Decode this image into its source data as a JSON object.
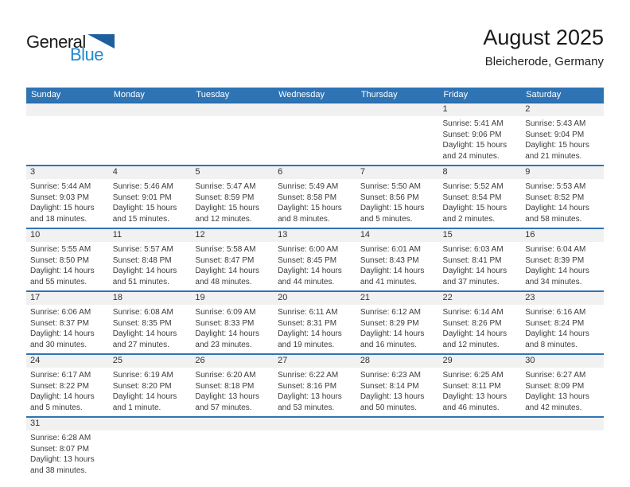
{
  "logo": {
    "part1": "General",
    "part2": "Blue"
  },
  "header": {
    "title": "August 2025",
    "subtitle": "Bleicherode, Germany"
  },
  "colors": {
    "header_bar": "#2e74b5",
    "row_separator": "#2e74b5",
    "day_strip": "#f1f1f1",
    "logo_blue": "#2289cb",
    "logo_triangle": "#1e5f9e",
    "text": "#3c3c3c"
  },
  "calendar": {
    "day_headers": [
      "Sunday",
      "Monday",
      "Tuesday",
      "Wednesday",
      "Thursday",
      "Friday",
      "Saturday"
    ],
    "weeks": [
      [
        null,
        null,
        null,
        null,
        null,
        {
          "day": "1",
          "lines": [
            "Sunrise: 5:41 AM",
            "Sunset: 9:06 PM",
            "Daylight: 15 hours",
            "and 24 minutes."
          ]
        },
        {
          "day": "2",
          "lines": [
            "Sunrise: 5:43 AM",
            "Sunset: 9:04 PM",
            "Daylight: 15 hours",
            "and 21 minutes."
          ]
        }
      ],
      [
        {
          "day": "3",
          "lines": [
            "Sunrise: 5:44 AM",
            "Sunset: 9:03 PM",
            "Daylight: 15 hours",
            "and 18 minutes."
          ]
        },
        {
          "day": "4",
          "lines": [
            "Sunrise: 5:46 AM",
            "Sunset: 9:01 PM",
            "Daylight: 15 hours",
            "and 15 minutes."
          ]
        },
        {
          "day": "5",
          "lines": [
            "Sunrise: 5:47 AM",
            "Sunset: 8:59 PM",
            "Daylight: 15 hours",
            "and 12 minutes."
          ]
        },
        {
          "day": "6",
          "lines": [
            "Sunrise: 5:49 AM",
            "Sunset: 8:58 PM",
            "Daylight: 15 hours",
            "and 8 minutes."
          ]
        },
        {
          "day": "7",
          "lines": [
            "Sunrise: 5:50 AM",
            "Sunset: 8:56 PM",
            "Daylight: 15 hours",
            "and 5 minutes."
          ]
        },
        {
          "day": "8",
          "lines": [
            "Sunrise: 5:52 AM",
            "Sunset: 8:54 PM",
            "Daylight: 15 hours",
            "and 2 minutes."
          ]
        },
        {
          "day": "9",
          "lines": [
            "Sunrise: 5:53 AM",
            "Sunset: 8:52 PM",
            "Daylight: 14 hours",
            "and 58 minutes."
          ]
        }
      ],
      [
        {
          "day": "10",
          "lines": [
            "Sunrise: 5:55 AM",
            "Sunset: 8:50 PM",
            "Daylight: 14 hours",
            "and 55 minutes."
          ]
        },
        {
          "day": "11",
          "lines": [
            "Sunrise: 5:57 AM",
            "Sunset: 8:48 PM",
            "Daylight: 14 hours",
            "and 51 minutes."
          ]
        },
        {
          "day": "12",
          "lines": [
            "Sunrise: 5:58 AM",
            "Sunset: 8:47 PM",
            "Daylight: 14 hours",
            "and 48 minutes."
          ]
        },
        {
          "day": "13",
          "lines": [
            "Sunrise: 6:00 AM",
            "Sunset: 8:45 PM",
            "Daylight: 14 hours",
            "and 44 minutes."
          ]
        },
        {
          "day": "14",
          "lines": [
            "Sunrise: 6:01 AM",
            "Sunset: 8:43 PM",
            "Daylight: 14 hours",
            "and 41 minutes."
          ]
        },
        {
          "day": "15",
          "lines": [
            "Sunrise: 6:03 AM",
            "Sunset: 8:41 PM",
            "Daylight: 14 hours",
            "and 37 minutes."
          ]
        },
        {
          "day": "16",
          "lines": [
            "Sunrise: 6:04 AM",
            "Sunset: 8:39 PM",
            "Daylight: 14 hours",
            "and 34 minutes."
          ]
        }
      ],
      [
        {
          "day": "17",
          "lines": [
            "Sunrise: 6:06 AM",
            "Sunset: 8:37 PM",
            "Daylight: 14 hours",
            "and 30 minutes."
          ]
        },
        {
          "day": "18",
          "lines": [
            "Sunrise: 6:08 AM",
            "Sunset: 8:35 PM",
            "Daylight: 14 hours",
            "and 27 minutes."
          ]
        },
        {
          "day": "19",
          "lines": [
            "Sunrise: 6:09 AM",
            "Sunset: 8:33 PM",
            "Daylight: 14 hours",
            "and 23 minutes."
          ]
        },
        {
          "day": "20",
          "lines": [
            "Sunrise: 6:11 AM",
            "Sunset: 8:31 PM",
            "Daylight: 14 hours",
            "and 19 minutes."
          ]
        },
        {
          "day": "21",
          "lines": [
            "Sunrise: 6:12 AM",
            "Sunset: 8:29 PM",
            "Daylight: 14 hours",
            "and 16 minutes."
          ]
        },
        {
          "day": "22",
          "lines": [
            "Sunrise: 6:14 AM",
            "Sunset: 8:26 PM",
            "Daylight: 14 hours",
            "and 12 minutes."
          ]
        },
        {
          "day": "23",
          "lines": [
            "Sunrise: 6:16 AM",
            "Sunset: 8:24 PM",
            "Daylight: 14 hours",
            "and 8 minutes."
          ]
        }
      ],
      [
        {
          "day": "24",
          "lines": [
            "Sunrise: 6:17 AM",
            "Sunset: 8:22 PM",
            "Daylight: 14 hours",
            "and 5 minutes."
          ]
        },
        {
          "day": "25",
          "lines": [
            "Sunrise: 6:19 AM",
            "Sunset: 8:20 PM",
            "Daylight: 14 hours",
            "and 1 minute."
          ]
        },
        {
          "day": "26",
          "lines": [
            "Sunrise: 6:20 AM",
            "Sunset: 8:18 PM",
            "Daylight: 13 hours",
            "and 57 minutes."
          ]
        },
        {
          "day": "27",
          "lines": [
            "Sunrise: 6:22 AM",
            "Sunset: 8:16 PM",
            "Daylight: 13 hours",
            "and 53 minutes."
          ]
        },
        {
          "day": "28",
          "lines": [
            "Sunrise: 6:23 AM",
            "Sunset: 8:14 PM",
            "Daylight: 13 hours",
            "and 50 minutes."
          ]
        },
        {
          "day": "29",
          "lines": [
            "Sunrise: 6:25 AM",
            "Sunset: 8:11 PM",
            "Daylight: 13 hours",
            "and 46 minutes."
          ]
        },
        {
          "day": "30",
          "lines": [
            "Sunrise: 6:27 AM",
            "Sunset: 8:09 PM",
            "Daylight: 13 hours",
            "and 42 minutes."
          ]
        }
      ],
      [
        {
          "day": "31",
          "lines": [
            "Sunrise: 6:28 AM",
            "Sunset: 8:07 PM",
            "Daylight: 13 hours",
            "and 38 minutes."
          ]
        },
        null,
        null,
        null,
        null,
        null,
        null
      ]
    ]
  }
}
